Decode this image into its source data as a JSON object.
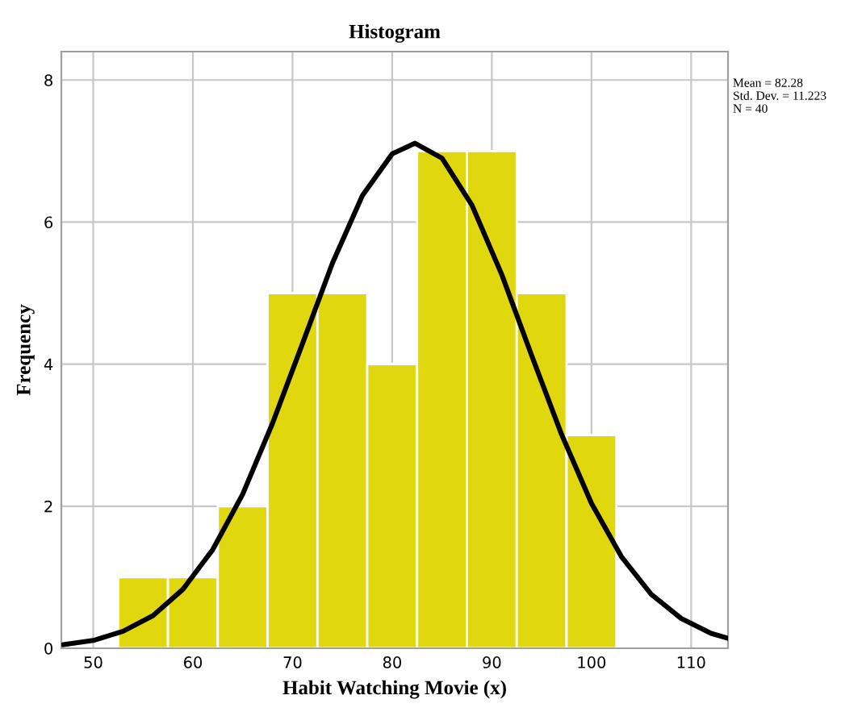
{
  "chart_data": {
    "type": "histogram",
    "title": "Histogram",
    "xlabel": "Habit Watching Movie (x)",
    "ylabel": "Frequency",
    "bins": [
      52.5,
      57.5,
      62.5,
      67.5,
      72.5,
      77.5,
      82.5,
      87.5,
      92.5,
      97.5,
      102.5
    ],
    "values": [
      1,
      1,
      2,
      5,
      5,
      4,
      7,
      7,
      5,
      3
    ],
    "color": "#e1d70f",
    "series": [
      {
        "type": "line",
        "color": "#000000",
        "x": [
          47,
          50,
          53,
          56,
          59,
          62,
          65,
          68,
          71,
          74,
          77,
          80,
          82.28,
          85,
          88,
          91,
          94,
          97,
          100,
          103,
          106,
          109,
          112,
          113.7
        ],
        "values": [
          0.05,
          0.11,
          0.24,
          0.46,
          0.83,
          1.39,
          2.17,
          3.17,
          4.29,
          5.42,
          6.37,
          6.96,
          7.11,
          6.9,
          6.24,
          5.26,
          4.12,
          3.01,
          2.04,
          1.29,
          0.76,
          0.42,
          0.21,
          0.14
        ]
      }
    ],
    "xlim": [
      46.8,
      113.7
    ],
    "xticks": [
      50,
      60,
      70,
      80,
      90,
      100,
      110
    ],
    "ylim": [
      0,
      8.4
    ],
    "yticks": [
      0,
      2,
      4,
      6,
      8
    ],
    "grid": true,
    "annotations": [
      "Mean = 82.28",
      "Std. Dev. = 11.223",
      "N = 40"
    ]
  }
}
